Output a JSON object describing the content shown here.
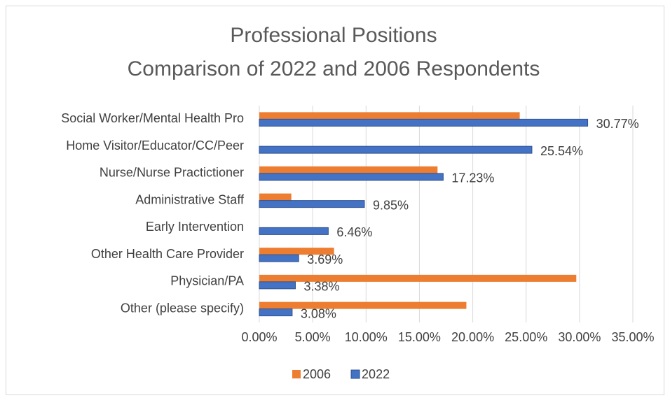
{
  "chart_data": {
    "type": "hbar",
    "title": [
      "Professional Positions",
      "Comparison of 2022 and 2006 Respondents"
    ],
    "categories": [
      "Social Worker/Mental Health Pro",
      "Home Visitor/Educator/CC/Peer",
      "Nurse/Nurse Practictioner",
      "Administrative Staff",
      "Early Intervention",
      "Other Health Care Provider",
      "Physician/PA",
      "Other (please specify)"
    ],
    "series": [
      {
        "name": "2006",
        "color": "#ed7d31",
        "values": [
          24.4,
          null,
          16.7,
          3.0,
          null,
          7.0,
          29.7,
          19.4
        ]
      },
      {
        "name": "2022",
        "color": "#4472c4",
        "values": [
          30.77,
          25.54,
          17.23,
          9.85,
          6.46,
          3.69,
          3.38,
          3.08
        ],
        "value_labels": [
          "30.77%",
          "25.54%",
          "17.23%",
          "9.85%",
          "6.46%",
          "3.69%",
          "3.38%",
          "3.08%"
        ]
      }
    ],
    "xlim": [
      0,
      35
    ],
    "xticks": [
      {
        "value": 0,
        "label": "0.00%"
      },
      {
        "value": 5,
        "label": "5.00%"
      },
      {
        "value": 10,
        "label": "10.00%"
      },
      {
        "value": 15,
        "label": "15.00%"
      },
      {
        "value": 20,
        "label": "20.00%"
      },
      {
        "value": 25,
        "label": "25.00%"
      },
      {
        "value": 30,
        "label": "30.00%"
      },
      {
        "value": 35,
        "label": "35.00%"
      }
    ],
    "grid": true,
    "legend": "bottom"
  }
}
